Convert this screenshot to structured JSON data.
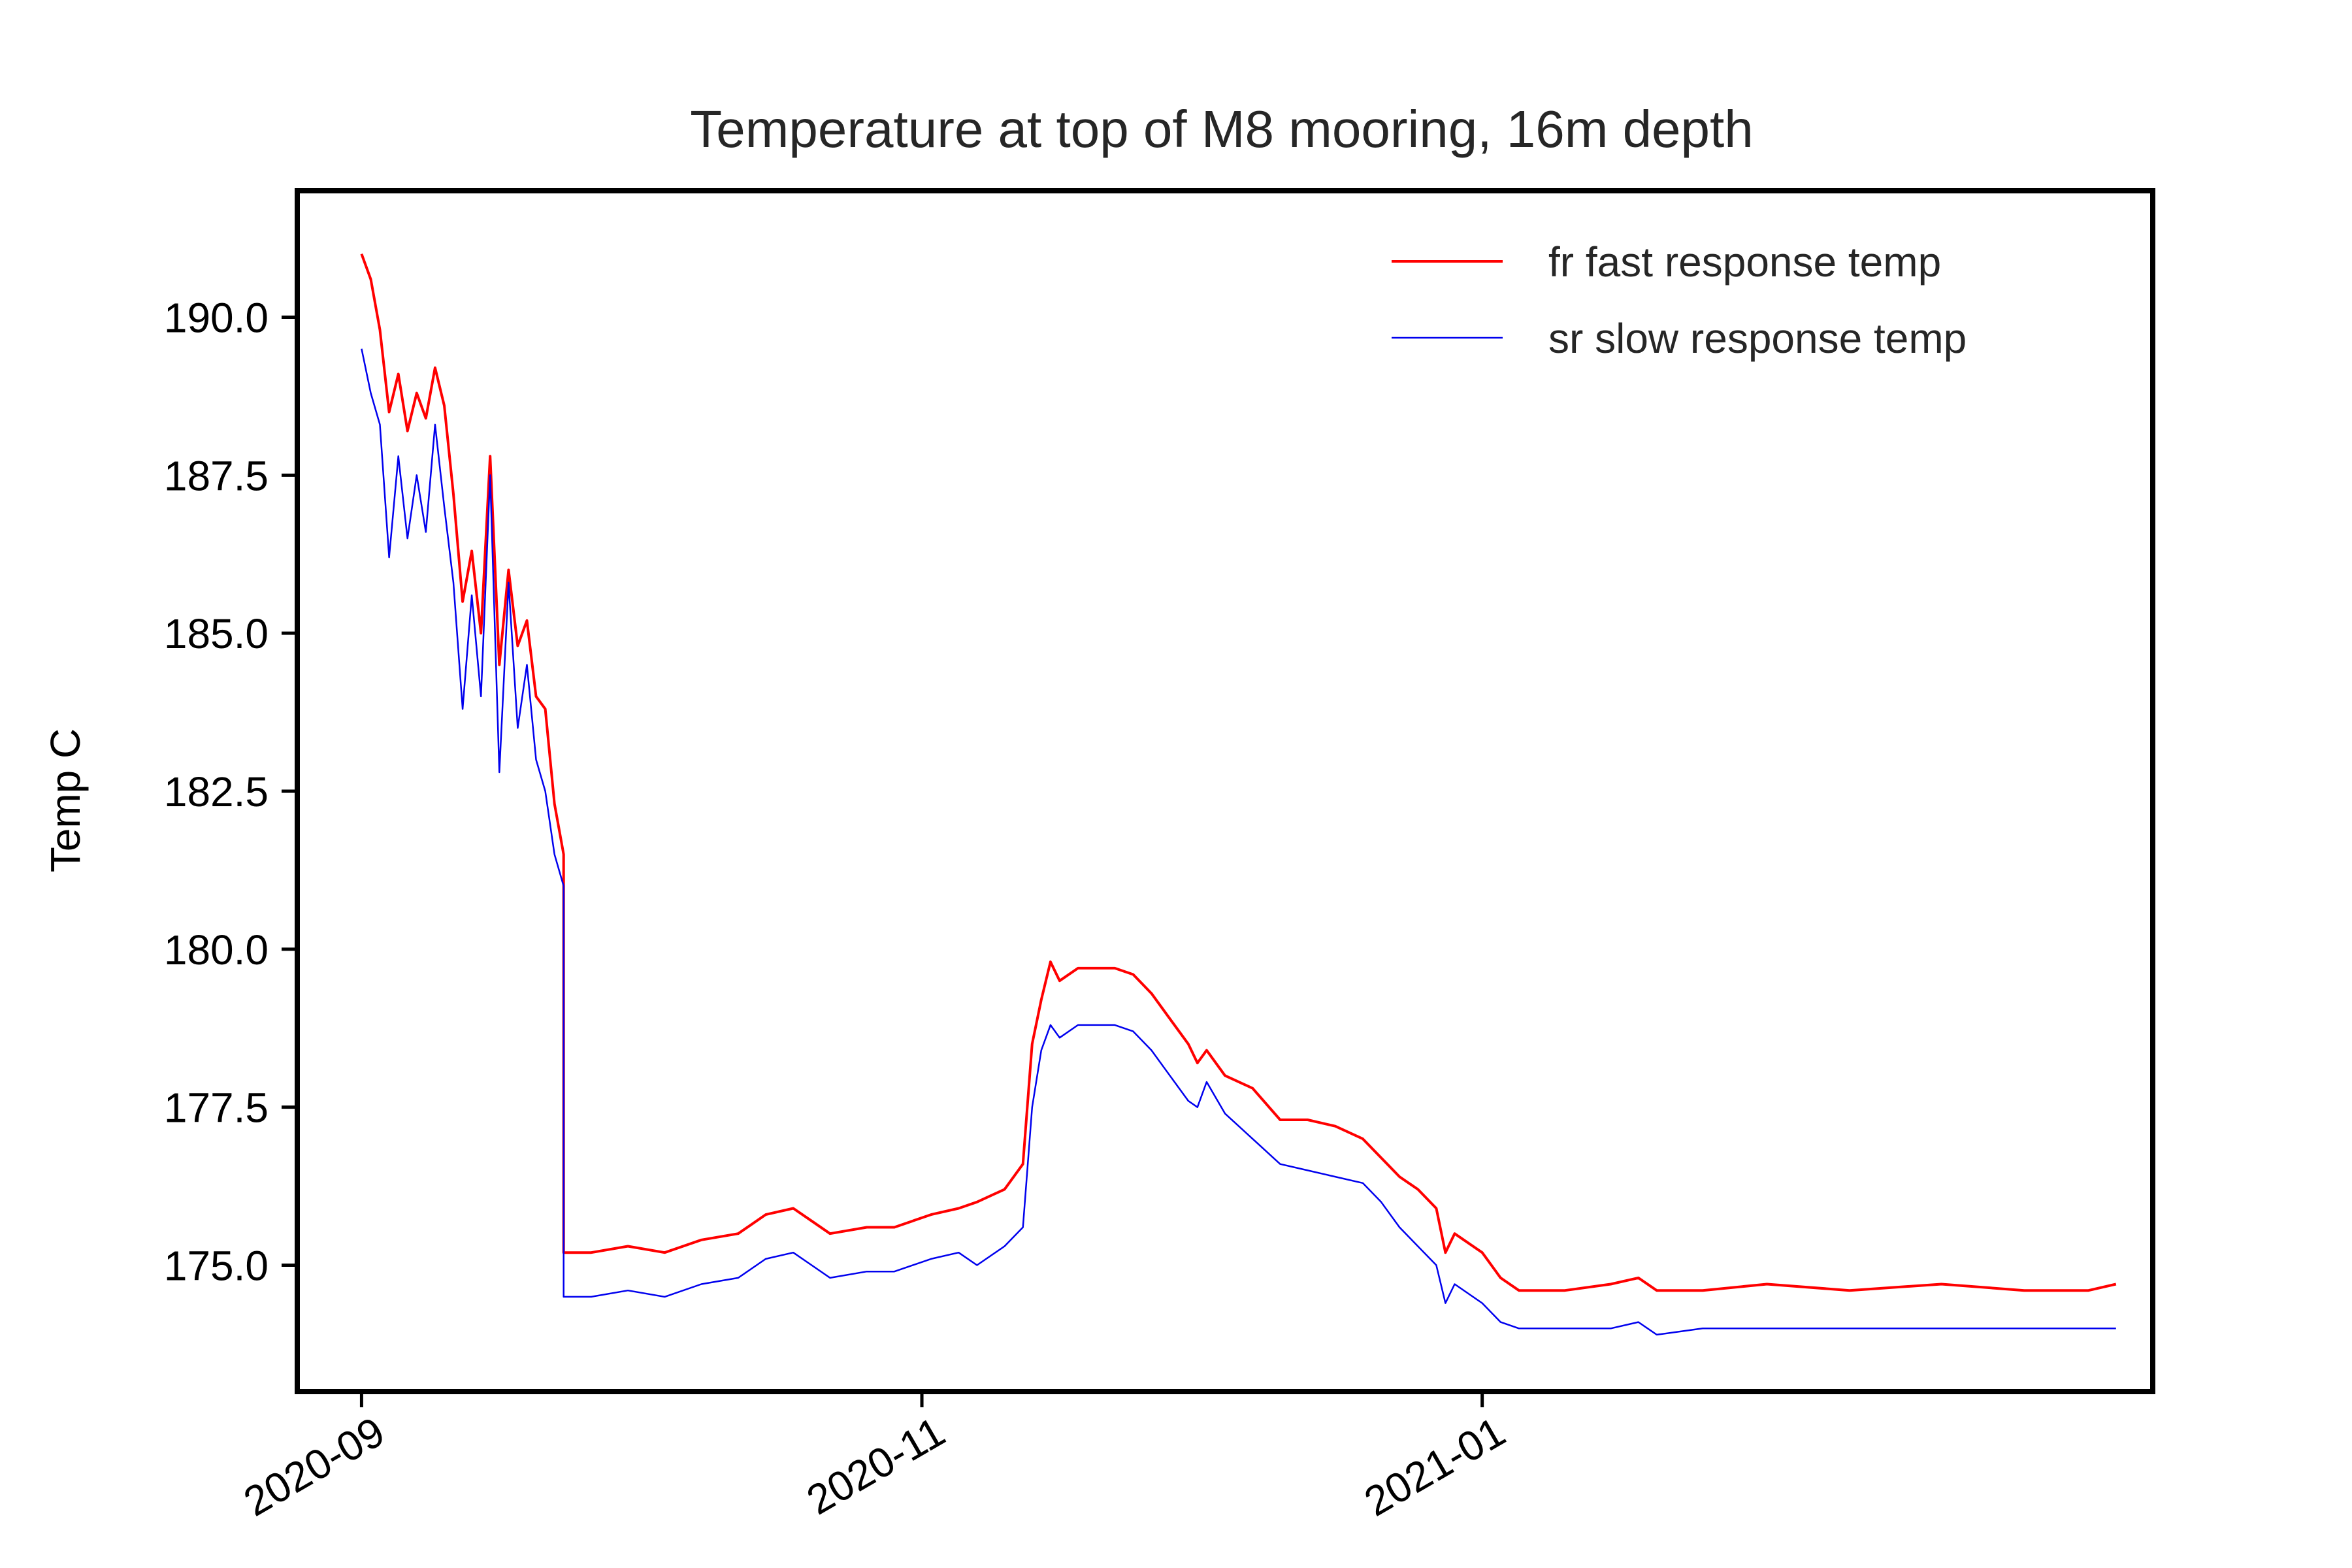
{
  "chart_data": {
    "type": "line",
    "title": "Temperature at top of M8 mooring, 16m depth",
    "xlabel": "",
    "ylabel": "Temp C",
    "x_type": "date",
    "xlim": [
      "2020-08-25",
      "2021-03-15"
    ],
    "ylim": [
      173.0,
      192.0
    ],
    "xticks": [
      "2020-09-01",
      "2020-11-01",
      "2021-01-01"
    ],
    "xtick_labels": [
      "2020-09",
      "2020-11",
      "2021-01"
    ],
    "yticks": [
      175.0,
      177.5,
      180.0,
      182.5,
      185.0,
      187.5,
      190.0
    ],
    "ytick_labels": [
      "175.0",
      "177.5",
      "180.0",
      "182.5",
      "185.0",
      "187.5",
      "190.0"
    ],
    "grid": false,
    "legend_position": "top-right",
    "series": [
      {
        "name": "fr fast response temp",
        "color": "#ff0000",
        "points": [
          [
            "2020-09-01",
            191.0
          ],
          [
            "2020-09-02",
            190.6
          ],
          [
            "2020-09-03",
            189.8
          ],
          [
            "2020-09-04",
            188.5
          ],
          [
            "2020-09-05",
            189.1
          ],
          [
            "2020-09-06",
            188.2
          ],
          [
            "2020-09-07",
            188.8
          ],
          [
            "2020-09-08",
            188.4
          ],
          [
            "2020-09-09",
            189.2
          ],
          [
            "2020-09-10",
            188.6
          ],
          [
            "2020-09-11",
            187.2
          ],
          [
            "2020-09-12",
            185.5
          ],
          [
            "2020-09-13",
            186.3
          ],
          [
            "2020-09-14",
            185.0
          ],
          [
            "2020-09-15",
            187.8
          ],
          [
            "2020-09-16",
            184.5
          ],
          [
            "2020-09-17",
            186.0
          ],
          [
            "2020-09-18",
            184.8
          ],
          [
            "2020-09-19",
            185.2
          ],
          [
            "2020-09-20",
            184.0
          ],
          [
            "2020-09-21",
            183.8
          ],
          [
            "2020-09-22",
            182.3
          ],
          [
            "2020-09-23",
            181.5
          ],
          [
            "2020-09-23",
            175.2
          ],
          [
            "2020-09-26",
            175.2
          ],
          [
            "2020-09-30",
            175.3
          ],
          [
            "2020-10-04",
            175.2
          ],
          [
            "2020-10-08",
            175.4
          ],
          [
            "2020-10-12",
            175.5
          ],
          [
            "2020-10-15",
            175.8
          ],
          [
            "2020-10-18",
            175.9
          ],
          [
            "2020-10-20",
            175.7
          ],
          [
            "2020-10-22",
            175.5
          ],
          [
            "2020-10-26",
            175.6
          ],
          [
            "2020-10-29",
            175.6
          ],
          [
            "2020-11-02",
            175.8
          ],
          [
            "2020-11-05",
            175.9
          ],
          [
            "2020-11-07",
            176.0
          ],
          [
            "2020-11-10",
            176.2
          ],
          [
            "2020-11-12",
            176.6
          ],
          [
            "2020-11-13",
            178.5
          ],
          [
            "2020-11-14",
            179.2
          ],
          [
            "2020-11-15",
            179.8
          ],
          [
            "2020-11-16",
            179.5
          ],
          [
            "2020-11-18",
            179.7
          ],
          [
            "2020-11-20",
            179.7
          ],
          [
            "2020-11-22",
            179.7
          ],
          [
            "2020-11-24",
            179.6
          ],
          [
            "2020-11-26",
            179.3
          ],
          [
            "2020-11-28",
            178.9
          ],
          [
            "2020-11-30",
            178.5
          ],
          [
            "2020-12-01",
            178.2
          ],
          [
            "2020-12-02",
            178.4
          ],
          [
            "2020-12-04",
            178.0
          ],
          [
            "2020-12-07",
            177.8
          ],
          [
            "2020-12-10",
            177.3
          ],
          [
            "2020-12-13",
            177.3
          ],
          [
            "2020-12-16",
            177.2
          ],
          [
            "2020-12-19",
            177.0
          ],
          [
            "2020-12-21",
            176.7
          ],
          [
            "2020-12-23",
            176.4
          ],
          [
            "2020-12-25",
            176.2
          ],
          [
            "2020-12-27",
            175.9
          ],
          [
            "2020-12-28",
            175.2
          ],
          [
            "2020-12-29",
            175.5
          ],
          [
            "2021-01-01",
            175.2
          ],
          [
            "2021-01-03",
            174.8
          ],
          [
            "2021-01-05",
            174.6
          ],
          [
            "2021-01-10",
            174.6
          ],
          [
            "2021-01-15",
            174.7
          ],
          [
            "2021-01-18",
            174.8
          ],
          [
            "2021-01-20",
            174.6
          ],
          [
            "2021-01-25",
            174.6
          ],
          [
            "2021-02-01",
            174.7
          ],
          [
            "2021-02-10",
            174.6
          ],
          [
            "2021-02-20",
            174.7
          ],
          [
            "2021-03-01",
            174.6
          ],
          [
            "2021-03-08",
            174.6
          ],
          [
            "2021-03-11",
            174.7
          ]
        ]
      },
      {
        "name": "sr slow response temp",
        "color": "#0000ee",
        "points": [
          [
            "2020-09-01",
            189.5
          ],
          [
            "2020-09-02",
            188.8
          ],
          [
            "2020-09-03",
            188.3
          ],
          [
            "2020-09-04",
            186.2
          ],
          [
            "2020-09-05",
            187.8
          ],
          [
            "2020-09-06",
            186.5
          ],
          [
            "2020-09-07",
            187.5
          ],
          [
            "2020-09-08",
            186.6
          ],
          [
            "2020-09-09",
            188.3
          ],
          [
            "2020-09-10",
            187.0
          ],
          [
            "2020-09-11",
            185.8
          ],
          [
            "2020-09-12",
            183.8
          ],
          [
            "2020-09-13",
            185.6
          ],
          [
            "2020-09-14",
            184.0
          ],
          [
            "2020-09-15",
            187.5
          ],
          [
            "2020-09-16",
            182.8
          ],
          [
            "2020-09-17",
            185.8
          ],
          [
            "2020-09-18",
            183.5
          ],
          [
            "2020-09-19",
            184.5
          ],
          [
            "2020-09-20",
            183.0
          ],
          [
            "2020-09-21",
            182.5
          ],
          [
            "2020-09-22",
            181.5
          ],
          [
            "2020-09-23",
            181.0
          ],
          [
            "2020-09-23",
            174.5
          ],
          [
            "2020-09-26",
            174.5
          ],
          [
            "2020-09-30",
            174.6
          ],
          [
            "2020-10-04",
            174.5
          ],
          [
            "2020-10-08",
            174.7
          ],
          [
            "2020-10-12",
            174.8
          ],
          [
            "2020-10-15",
            175.1
          ],
          [
            "2020-10-18",
            175.2
          ],
          [
            "2020-10-20",
            175.0
          ],
          [
            "2020-10-22",
            174.8
          ],
          [
            "2020-10-26",
            174.9
          ],
          [
            "2020-10-29",
            174.9
          ],
          [
            "2020-11-02",
            175.1
          ],
          [
            "2020-11-05",
            175.2
          ],
          [
            "2020-11-07",
            175.0
          ],
          [
            "2020-11-10",
            175.3
          ],
          [
            "2020-11-12",
            175.6
          ],
          [
            "2020-11-13",
            177.5
          ],
          [
            "2020-11-14",
            178.4
          ],
          [
            "2020-11-15",
            178.8
          ],
          [
            "2020-11-16",
            178.6
          ],
          [
            "2020-11-18",
            178.8
          ],
          [
            "2020-11-20",
            178.8
          ],
          [
            "2020-11-22",
            178.8
          ],
          [
            "2020-11-24",
            178.7
          ],
          [
            "2020-11-26",
            178.4
          ],
          [
            "2020-11-28",
            178.0
          ],
          [
            "2020-11-30",
            177.6
          ],
          [
            "2020-12-01",
            177.5
          ],
          [
            "2020-12-02",
            177.9
          ],
          [
            "2020-12-04",
            177.4
          ],
          [
            "2020-12-07",
            177.0
          ],
          [
            "2020-12-10",
            176.6
          ],
          [
            "2020-12-13",
            176.5
          ],
          [
            "2020-12-16",
            176.4
          ],
          [
            "2020-12-19",
            176.3
          ],
          [
            "2020-12-21",
            176.0
          ],
          [
            "2020-12-23",
            175.6
          ],
          [
            "2020-12-25",
            175.3
          ],
          [
            "2020-12-27",
            175.0
          ],
          [
            "2020-12-28",
            174.4
          ],
          [
            "2020-12-29",
            174.7
          ],
          [
            "2021-01-01",
            174.4
          ],
          [
            "2021-01-03",
            174.1
          ],
          [
            "2021-01-05",
            174.0
          ],
          [
            "2021-01-10",
            174.0
          ],
          [
            "2021-01-15",
            174.0
          ],
          [
            "2021-01-18",
            174.1
          ],
          [
            "2021-01-20",
            173.9
          ],
          [
            "2021-01-25",
            174.0
          ],
          [
            "2021-02-01",
            174.0
          ],
          [
            "2021-02-10",
            174.0
          ],
          [
            "2021-02-20",
            174.0
          ],
          [
            "2021-03-01",
            174.0
          ],
          [
            "2021-03-08",
            174.0
          ],
          [
            "2021-03-11",
            174.0
          ]
        ]
      }
    ]
  }
}
